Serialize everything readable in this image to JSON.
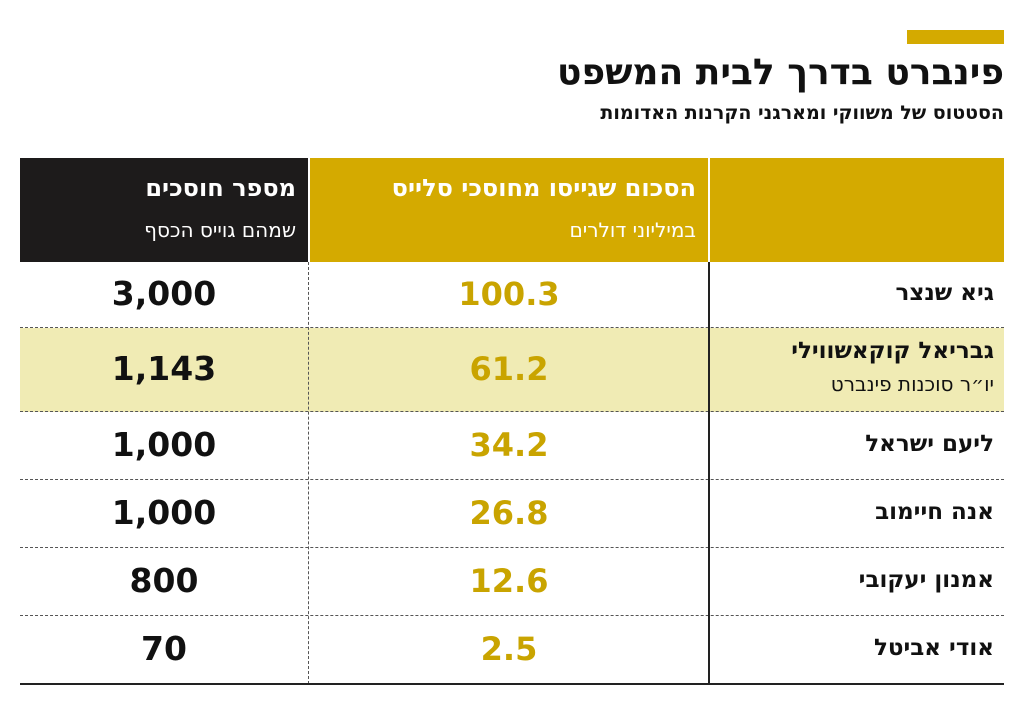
{
  "header": {
    "title": "פינברט בדרך לבית המשפט",
    "subtitle": "הסטטוס של משווקי ומארגני הקרנות האדומות"
  },
  "table": {
    "columns": [
      {
        "title": "הסכום שגייסו מחוסכי סלייס",
        "subtitle": "במיליוני דולרים"
      },
      {
        "title": "מספר חוסכים",
        "subtitle": "שמהם גוייס הכסף"
      }
    ],
    "rows": [
      {
        "name": "גיא שנצר",
        "amount": "100.3",
        "savers": "3,000"
      },
      {
        "name": "גבריאל קוקאשווילי",
        "role": "יו״ר סוכנות פינברט",
        "amount": "61.2",
        "savers": "1,143"
      },
      {
        "name": "ליעם ישראל",
        "amount": "34.2",
        "savers": "1,000"
      },
      {
        "name": "אנה חיימוב",
        "amount": "26.8",
        "savers": "1,000"
      },
      {
        "name": "אמנון יעקובי",
        "amount": "12.6",
        "savers": "800"
      },
      {
        "name": "אודי אביטל",
        "amount": "2.5",
        "savers": "70"
      }
    ]
  }
}
